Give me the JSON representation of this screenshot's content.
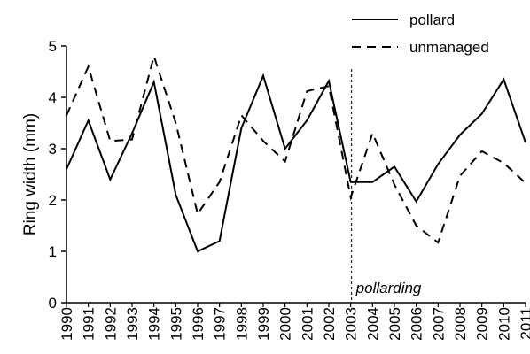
{
  "chart_data": {
    "type": "line",
    "title": "",
    "xlabel": "",
    "ylabel": "Ring width (mm)",
    "ylim": [
      0,
      5
    ],
    "yticks": [
      "0",
      "1",
      "2",
      "3",
      "4",
      "5"
    ],
    "categories": [
      "1990",
      "1991",
      "1992",
      "1993",
      "1994",
      "1995",
      "1996",
      "1997",
      "1998",
      "1999",
      "2000",
      "2001",
      "2002",
      "2003",
      "2004",
      "2005",
      "2006",
      "2007",
      "2008",
      "2009",
      "2010",
      "2011"
    ],
    "series": [
      {
        "name": "pollard",
        "style": "solid",
        "values": [
          2.6,
          3.55,
          2.4,
          3.3,
          4.3,
          2.1,
          1.0,
          1.2,
          3.4,
          4.42,
          3.0,
          3.55,
          4.32,
          2.35,
          2.35,
          2.65,
          1.97,
          2.7,
          3.27,
          3.68,
          4.35,
          3.12
        ]
      },
      {
        "name": "unmanaged",
        "style": "dashed",
        "values": [
          3.65,
          4.6,
          3.15,
          3.18,
          4.8,
          3.5,
          1.73,
          2.35,
          3.65,
          3.15,
          2.75,
          4.12,
          4.22,
          2.05,
          3.3,
          2.3,
          1.5,
          1.17,
          2.47,
          2.95,
          2.72,
          2.33
        ]
      }
    ],
    "annotation": {
      "text": "pollarding",
      "at": "2003"
    },
    "legend": {
      "position": "top-right"
    },
    "grid": false
  }
}
